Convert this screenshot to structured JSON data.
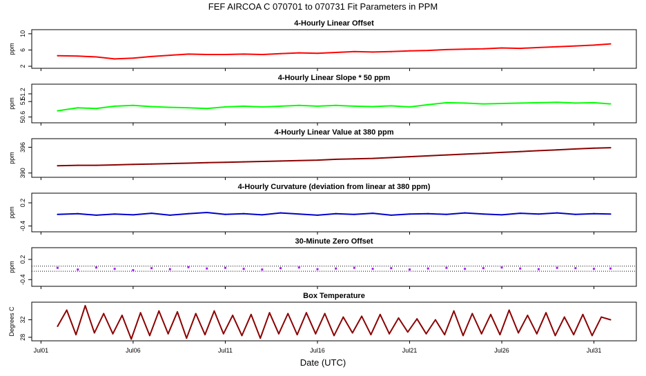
{
  "title": "FEF   AIRCOA C   070701 to 070731   Fit Parameters in PPM",
  "xlabel": "Date (UTC)",
  "x_ticks": [
    {
      "label": "Jul01",
      "day": 1
    },
    {
      "label": "Jul06",
      "day": 6
    },
    {
      "label": "Jul11",
      "day": 11
    },
    {
      "label": "Jul16",
      "day": 16
    },
    {
      "label": "Jul21",
      "day": 21
    },
    {
      "label": "Jul26",
      "day": 26
    },
    {
      "label": "Jul31",
      "day": 31
    }
  ],
  "chart_data": [
    {
      "type": "line",
      "title": "4-Hourly Linear Offset",
      "ylabel": "ppm",
      "color": "#ff0000",
      "xlim": [
        0.5,
        33.3
      ],
      "ylim": [
        1.5,
        11
      ],
      "yticks": [
        2,
        6,
        10
      ],
      "x": [
        1.9,
        3,
        4,
        5,
        6,
        7,
        8,
        9,
        10,
        11,
        12,
        13,
        14,
        15,
        16,
        17,
        18,
        19,
        20,
        21,
        22,
        23,
        24,
        25,
        26,
        27,
        28,
        29,
        30,
        31,
        31.9
      ],
      "y": [
        4.6,
        4.5,
        4.3,
        3.8,
        4.0,
        4.4,
        4.7,
        5.0,
        4.9,
        4.9,
        5.0,
        4.9,
        5.1,
        5.3,
        5.2,
        5.4,
        5.6,
        5.5,
        5.6,
        5.8,
        5.9,
        6.1,
        6.2,
        6.3,
        6.5,
        6.4,
        6.6,
        6.8,
        7.0,
        7.2,
        7.5
      ]
    },
    {
      "type": "line",
      "title": "4-Hourly Linear Slope * 50 ppm",
      "ylabel": "ppm",
      "color": "#00ff00",
      "xlim": [
        0.5,
        33.3
      ],
      "ylim": [
        50.45,
        51.45
      ],
      "yticks": [
        50.6,
        51,
        51.2
      ],
      "x": [
        1.9,
        3,
        4,
        5,
        6,
        7,
        8,
        9,
        10,
        11,
        12,
        13,
        14,
        15,
        16,
        17,
        18,
        19,
        20,
        21,
        22,
        23,
        24,
        25,
        26,
        27,
        28,
        29,
        30,
        31,
        31.9
      ],
      "y": [
        50.76,
        50.84,
        50.82,
        50.88,
        50.9,
        50.87,
        50.85,
        50.84,
        50.82,
        50.86,
        50.88,
        50.86,
        50.88,
        50.9,
        50.88,
        50.9,
        50.88,
        50.87,
        50.89,
        50.86,
        50.92,
        50.97,
        50.96,
        50.94,
        50.95,
        50.96,
        50.97,
        50.98,
        50.96,
        50.97,
        50.94
      ]
    },
    {
      "type": "line",
      "title": "4-Hourly Linear Value at 380 ppm",
      "ylabel": "ppm",
      "color": "#8b0000",
      "xlim": [
        0.5,
        33.3
      ],
      "ylim": [
        389,
        398
      ],
      "yticks": [
        390,
        396
      ],
      "x": [
        1.9,
        3,
        4,
        5,
        6,
        7,
        8,
        9,
        10,
        11,
        12,
        13,
        14,
        15,
        16,
        17,
        18,
        19,
        20,
        21,
        22,
        23,
        24,
        25,
        26,
        27,
        28,
        29,
        30,
        31,
        31.9
      ],
      "y": [
        391.7,
        391.8,
        391.8,
        391.9,
        392.0,
        392.1,
        392.2,
        392.3,
        392.4,
        392.5,
        392.6,
        392.7,
        392.8,
        392.9,
        393.0,
        393.2,
        393.3,
        393.4,
        393.6,
        393.8,
        394.0,
        394.2,
        394.4,
        394.6,
        394.8,
        395.0,
        395.2,
        395.4,
        395.6,
        395.8,
        395.9
      ]
    },
    {
      "type": "line",
      "title": "4-Hourly Curvature (deviation from linear at 380 ppm)",
      "ylabel": "ppm",
      "color": "#0000cd",
      "xlim": [
        0.5,
        33.3
      ],
      "ylim": [
        -0.55,
        0.45
      ],
      "yticks": [
        -0.4,
        0.2
      ],
      "x": [
        1.9,
        3,
        4,
        5,
        6,
        7,
        8,
        9,
        10,
        11,
        12,
        13,
        14,
        15,
        16,
        17,
        18,
        19,
        20,
        21,
        22,
        23,
        24,
        25,
        26,
        27,
        28,
        29,
        30,
        31,
        31.9
      ],
      "y": [
        -0.1,
        -0.08,
        -0.12,
        -0.09,
        -0.11,
        -0.07,
        -0.12,
        -0.08,
        -0.05,
        -0.1,
        -0.08,
        -0.11,
        -0.06,
        -0.09,
        -0.12,
        -0.08,
        -0.1,
        -0.07,
        -0.12,
        -0.09,
        -0.08,
        -0.1,
        -0.06,
        -0.09,
        -0.11,
        -0.07,
        -0.09,
        -0.06,
        -0.1,
        -0.08,
        -0.09
      ]
    },
    {
      "type": "scatter",
      "title": "30-Minute Zero Offset",
      "ylabel": "ppm",
      "color": "#a020f0",
      "xlim": [
        0.5,
        33.3
      ],
      "ylim": [
        -0.6,
        0.55
      ],
      "yticks": [
        -0.4,
        0.2
      ],
      "reference_lines": [
        0.0,
        -0.15
      ],
      "x": [
        1.9,
        3,
        4,
        5,
        6,
        7,
        8,
        9,
        10,
        11,
        12,
        13,
        14,
        15,
        16,
        17,
        18,
        19,
        20,
        21,
        22,
        23,
        24,
        25,
        26,
        27,
        28,
        29,
        30,
        31,
        31.9
      ],
      "y": [
        -0.05,
        -0.1,
        -0.04,
        -0.08,
        -0.12,
        -0.06,
        -0.09,
        -0.03,
        -0.07,
        -0.05,
        -0.08,
        -0.1,
        -0.06,
        -0.04,
        -0.09,
        -0.07,
        -0.05,
        -0.08,
        -0.06,
        -0.1,
        -0.07,
        -0.05,
        -0.08,
        -0.06,
        -0.04,
        -0.07,
        -0.09,
        -0.05,
        -0.06,
        -0.08,
        -0.07
      ]
    },
    {
      "type": "line",
      "title": "Box Temperature",
      "ylabel": "Degrees C",
      "color": "#8b0000",
      "xlim": [
        0.5,
        33.3
      ],
      "ylim": [
        27.2,
        36
      ],
      "yticks": [
        28,
        32
      ],
      "x": [
        1.9,
        2.4,
        2.9,
        3.4,
        3.9,
        4.4,
        4.9,
        5.4,
        5.9,
        6.4,
        6.9,
        7.4,
        7.9,
        8.4,
        8.9,
        9.4,
        9.9,
        10.4,
        10.9,
        11.4,
        11.9,
        12.4,
        12.9,
        13.4,
        13.9,
        14.4,
        14.9,
        15.4,
        15.9,
        16.4,
        16.9,
        17.4,
        17.9,
        18.4,
        18.9,
        19.4,
        19.9,
        20.4,
        20.9,
        21.4,
        21.9,
        22.4,
        22.9,
        23.4,
        23.9,
        24.4,
        24.9,
        25.4,
        25.9,
        26.4,
        26.9,
        27.4,
        27.9,
        28.4,
        28.9,
        29.4,
        29.9,
        30.4,
        30.9,
        31.4,
        31.9
      ],
      "y": [
        30.5,
        34.2,
        28.6,
        35.2,
        29.0,
        33.4,
        28.8,
        33.0,
        27.6,
        33.6,
        28.4,
        34.0,
        28.8,
        33.8,
        27.8,
        33.4,
        28.6,
        34.0,
        28.8,
        33.0,
        28.4,
        33.2,
        27.8,
        33.6,
        28.8,
        33.4,
        28.6,
        33.6,
        28.8,
        33.4,
        28.4,
        32.6,
        29.0,
        32.8,
        28.6,
        33.2,
        28.8,
        32.4,
        29.2,
        32.2,
        28.8,
        32.0,
        28.6,
        34.0,
        28.4,
        33.4,
        28.8,
        33.2,
        28.6,
        34.2,
        29.0,
        33.0,
        28.8,
        33.6,
        28.4,
        32.6,
        28.6,
        33.2,
        28.4,
        32.6,
        32.0
      ]
    }
  ]
}
